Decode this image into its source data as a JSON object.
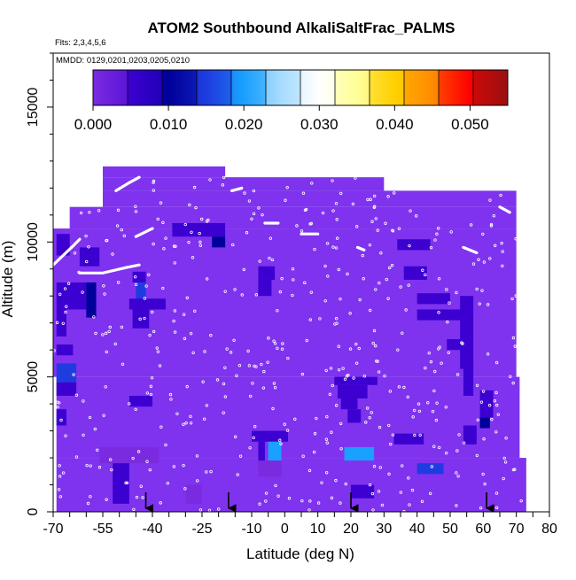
{
  "chart_data": {
    "type": "heatmap",
    "title": "ATOM2 Southbound AlkaliSaltFrac_PALMS",
    "flights_note": "Flts: 2,3,4,5,6",
    "date_note": "MMDD: 0129,0201,0203,0205,0210",
    "xlabel": "Latitude (deg N)",
    "ylabel": "Altitude (m)",
    "xlim": [
      -70,
      80
    ],
    "ylim": [
      0,
      17000
    ],
    "x_ticks": [
      -70,
      -55,
      -40,
      -25,
      -10,
      0,
      10,
      20,
      30,
      40,
      50,
      60,
      70,
      80
    ],
    "y_ticks": [
      0,
      5000,
      10000,
      15000
    ],
    "colorbar": {
      "range": [
        0,
        0.055
      ],
      "tick_values": [
        0.0,
        0.01,
        0.02,
        0.03,
        0.04,
        0.05
      ],
      "tick_labels": [
        "0.000",
        "0.010",
        "0.020",
        "0.030",
        "0.040",
        "0.050"
      ],
      "colors": [
        "#7a2be0",
        "#3c00d0",
        "#00009a",
        "#1e3ce0",
        "#1aa0ff",
        "#a8dcff",
        "#ffffff",
        "#ffff99",
        "#ffd000",
        "#ff8c00",
        "#ff0000",
        "#9a1010"
      ]
    },
    "background_color": "#7f33ee",
    "arrow_latitudes": [
      -42,
      -17,
      20,
      61
    ],
    "coverage_rows": [
      {
        "z0": 0,
        "z1": 2000,
        "x0": -69,
        "x1": 73
      },
      {
        "z0": 2000,
        "z1": 5000,
        "x0": -69,
        "x1": 71
      },
      {
        "z0": 5000,
        "z1": 10500,
        "x0": -70,
        "x1": 70
      },
      {
        "z0": 10500,
        "z1": 11300,
        "x0": -65,
        "x1": 70
      },
      {
        "z0": 11300,
        "z1": 11900,
        "x0": -55,
        "x1": 70
      },
      {
        "z0": 11900,
        "z1": 12400,
        "x0": -55,
        "x1": 30
      },
      {
        "z0": 12400,
        "z1": 12800,
        "x0": -55,
        "x1": -18
      }
    ],
    "cells": [
      {
        "x0": -62,
        "x1": -56,
        "z0": 9100,
        "z1": 9800,
        "v": 0.006
      },
      {
        "x0": -69,
        "x1": -65,
        "z0": 9500,
        "z1": 10300,
        "v": 0.008
      },
      {
        "x0": -69,
        "x1": -60,
        "z0": 7500,
        "z1": 8500,
        "v": 0.007
      },
      {
        "x0": -69,
        "x1": -66,
        "z0": 6500,
        "z1": 7500,
        "v": 0.006
      },
      {
        "x0": -60,
        "x1": -57,
        "z0": 7200,
        "z1": 8500,
        "v": 0.011
      },
      {
        "x0": -69,
        "x1": -64,
        "z0": 5800,
        "z1": 6200,
        "v": 0.006
      },
      {
        "x0": -69,
        "x1": -63,
        "z0": 4800,
        "z1": 5500,
        "v": 0.016
      },
      {
        "x0": -69,
        "x1": -63,
        "z0": 4300,
        "z1": 4800,
        "v": 0.008
      },
      {
        "x0": -69,
        "x1": -66,
        "z0": 3200,
        "z1": 3800,
        "v": 0.005
      },
      {
        "x0": -46,
        "x1": -42,
        "z0": 8500,
        "z1": 8900,
        "v": 0.007
      },
      {
        "x0": -45,
        "x1": -42,
        "z0": 7800,
        "z1": 8500,
        "v": 0.018
      },
      {
        "x0": -47,
        "x1": -36,
        "z0": 7500,
        "z1": 7900,
        "v": 0.005
      },
      {
        "x0": -46,
        "x1": -41,
        "z0": 6800,
        "z1": 7500,
        "v": 0.006
      },
      {
        "x0": -47,
        "x1": -40,
        "z0": 3900,
        "z1": 4300,
        "v": 0.006
      },
      {
        "x0": -56,
        "x1": -38,
        "z0": 1800,
        "z1": 2400,
        "v": 0.004
      },
      {
        "x0": -52,
        "x1": -47,
        "z0": 300,
        "z1": 1800,
        "v": 0.006
      },
      {
        "x0": -30,
        "x1": -25,
        "z0": 300,
        "z1": 1000,
        "v": 0.004
      },
      {
        "x0": -34,
        "x1": -18,
        "z0": 10200,
        "z1": 10700,
        "v": 0.007
      },
      {
        "x0": -22,
        "x1": -18,
        "z0": 9800,
        "z1": 10200,
        "v": 0.011
      },
      {
        "x0": -8,
        "x1": -3,
        "z0": 8600,
        "z1": 9100,
        "v": 0.006
      },
      {
        "x0": -8,
        "x1": -4,
        "z0": 8000,
        "z1": 8600,
        "v": 0.005
      },
      {
        "x0": -10,
        "x1": 1,
        "z0": 2600,
        "z1": 3000,
        "v": 0.006
      },
      {
        "x0": -8,
        "x1": -6,
        "z0": 1800,
        "z1": 2600,
        "v": 0.006
      },
      {
        "x0": -5,
        "x1": -1,
        "z0": 1900,
        "z1": 2600,
        "v": 0.019
      },
      {
        "x0": -8,
        "x1": -1,
        "z0": 1300,
        "z1": 1900,
        "v": 0.004
      },
      {
        "x0": 15,
        "x1": 28,
        "z0": 4700,
        "z1": 5000,
        "v": 0.007
      },
      {
        "x0": 16,
        "x1": 25,
        "z0": 4200,
        "z1": 4700,
        "v": 0.005
      },
      {
        "x0": 17,
        "x1": 22,
        "z0": 3800,
        "z1": 4200,
        "v": 0.008
      },
      {
        "x0": 19,
        "x1": 23,
        "z0": 3300,
        "z1": 3800,
        "v": 0.006
      },
      {
        "x0": 18,
        "x1": 27,
        "z0": 1900,
        "z1": 2400,
        "v": 0.02
      },
      {
        "x0": 20,
        "x1": 27,
        "z0": 500,
        "z1": 1000,
        "v": 0.005
      },
      {
        "x0": 34,
        "x1": 44,
        "z0": 9700,
        "z1": 10100,
        "v": 0.006
      },
      {
        "x0": 36,
        "x1": 43,
        "z0": 8600,
        "z1": 9100,
        "v": 0.006
      },
      {
        "x0": 40,
        "x1": 50,
        "z0": 7700,
        "z1": 8100,
        "v": 0.007
      },
      {
        "x0": 40,
        "x1": 55,
        "z0": 7100,
        "z1": 7500,
        "v": 0.006
      },
      {
        "x0": 49,
        "x1": 55,
        "z0": 6000,
        "z1": 6400,
        "v": 0.006
      },
      {
        "x0": 53,
        "x1": 57,
        "z0": 5300,
        "z1": 8000,
        "v": 0.005
      },
      {
        "x0": 54,
        "x1": 57,
        "z0": 4300,
        "z1": 5500,
        "v": 0.006
      },
      {
        "x0": 59,
        "x1": 63,
        "z0": 3500,
        "z1": 4500,
        "v": 0.009
      },
      {
        "x0": 59,
        "x1": 62,
        "z0": 3100,
        "z1": 3500,
        "v": 0.012
      },
      {
        "x0": 54,
        "x1": 58,
        "z0": 2500,
        "z1": 3200,
        "v": 0.006
      },
      {
        "x0": 33,
        "x1": 42,
        "z0": 2500,
        "z1": 2900,
        "v": 0.006
      },
      {
        "x0": 40,
        "x1": 48,
        "z0": 1400,
        "z1": 1800,
        "v": 0.018
      }
    ],
    "flight_tracks": [
      {
        "pts": [
          [
            -70,
            9150
          ],
          [
            -67,
            9500
          ],
          [
            -64,
            9850
          ],
          [
            -62,
            10100
          ]
        ]
      },
      {
        "pts": [
          [
            -62,
            8850
          ],
          [
            -55,
            8850
          ],
          [
            -48,
            9050
          ],
          [
            -44,
            9150
          ]
        ]
      },
      {
        "pts": [
          [
            -51,
            11900
          ],
          [
            -47,
            12200
          ],
          [
            -44,
            12400
          ]
        ]
      },
      {
        "pts": [
          [
            -45,
            10200
          ],
          [
            -40,
            10500
          ]
        ]
      },
      {
        "pts": [
          [
            -16,
            11900
          ],
          [
            -13,
            12000
          ]
        ]
      },
      {
        "pts": [
          [
            -6,
            10700
          ],
          [
            -2,
            10700
          ]
        ]
      },
      {
        "pts": [
          [
            5,
            10300
          ],
          [
            10,
            10300
          ]
        ]
      },
      {
        "pts": [
          [
            22,
            9800
          ],
          [
            24,
            9700
          ]
        ]
      },
      {
        "pts": [
          [
            54,
            9800
          ],
          [
            58,
            9600
          ]
        ]
      },
      {
        "pts": [
          [
            65,
            11300
          ],
          [
            68,
            11100
          ]
        ]
      }
    ]
  }
}
